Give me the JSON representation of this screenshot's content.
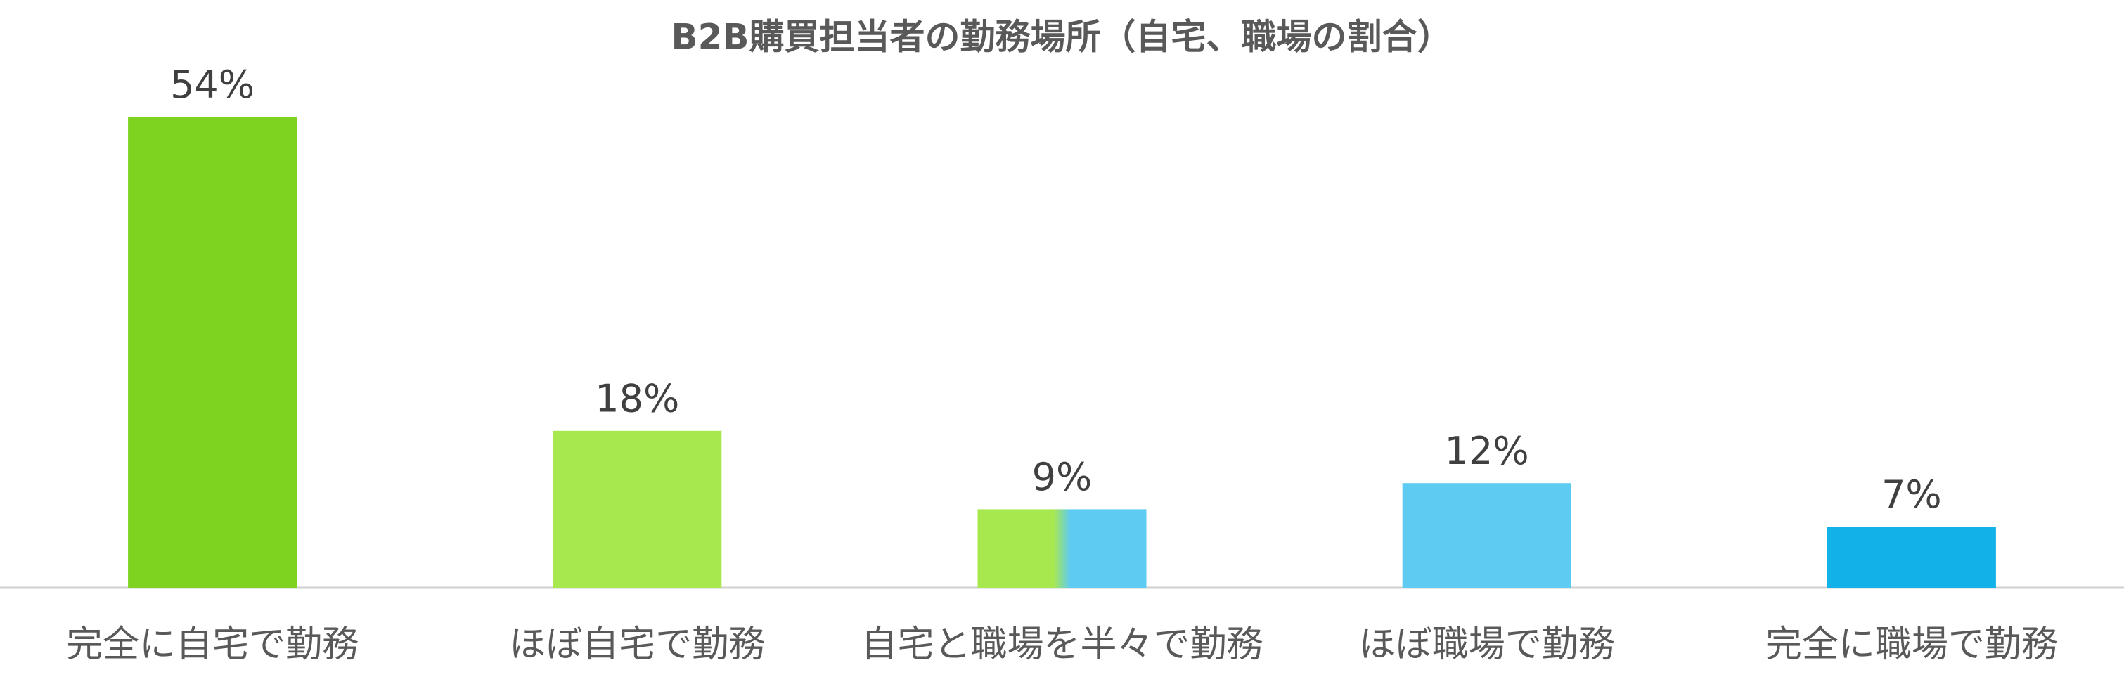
{
  "chart_data": {
    "type": "bar",
    "title": "B2B購買担当者の勤務場所（自宅、職場の割合）",
    "categories": [
      "完全に自宅で勤務",
      "ほぼ自宅で勤務",
      "自宅と職場を半々で勤務",
      "ほぼ職場で勤務",
      "完全に職場で勤務"
    ],
    "values": [
      54,
      18,
      9,
      12,
      7
    ],
    "value_labels": [
      "54%",
      "18%",
      "9%",
      "12%",
      "7%"
    ],
    "colors": [
      "#7ed321",
      "#a8e84f",
      [
        "#a8e84f",
        "#5ecbf3"
      ],
      "#5ecbf3",
      "#12b2e8"
    ],
    "ylim": [
      0,
      60
    ]
  }
}
